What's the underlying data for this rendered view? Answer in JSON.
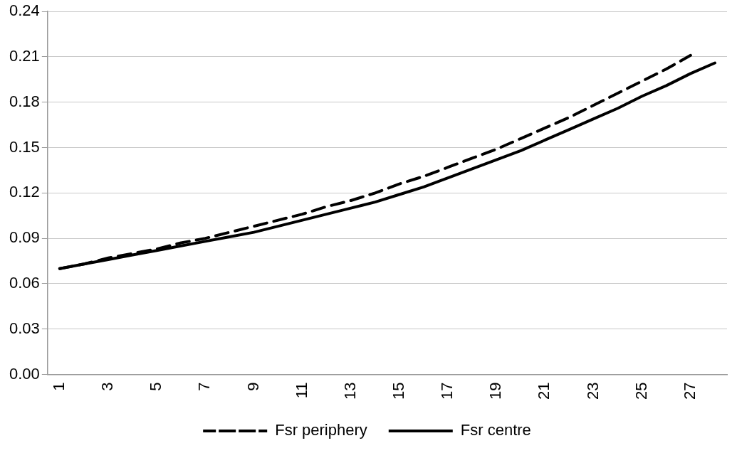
{
  "chart_data": {
    "type": "line",
    "categories": [
      "1",
      null,
      "3",
      null,
      "5",
      null,
      "7",
      null,
      "9",
      null,
      "11",
      null,
      "13",
      null,
      "15",
      null,
      "17",
      null,
      "19",
      null,
      "21",
      null,
      "23",
      null,
      "25",
      null,
      "27",
      null
    ],
    "series": [
      {
        "name": "Fsr periphery",
        "color": "#000000",
        "line_style": "dashed",
        "values": [
          0.07,
          0.073,
          0.077,
          0.08,
          0.083,
          0.087,
          0.09,
          0.094,
          0.098,
          0.102,
          0.106,
          0.111,
          0.115,
          0.12,
          0.126,
          0.131,
          0.137,
          0.143,
          0.149,
          0.156,
          0.163,
          0.17,
          0.178,
          0.186,
          0.194,
          0.202,
          0.211,
          null
        ]
      },
      {
        "name": "Fsr centre",
        "color": "#000000",
        "line_style": "solid",
        "values": [
          0.07,
          0.073,
          0.076,
          0.079,
          0.082,
          0.085,
          0.088,
          0.091,
          0.094,
          0.098,
          0.102,
          0.106,
          0.11,
          0.114,
          0.119,
          0.124,
          0.13,
          0.136,
          0.142,
          0.148,
          0.155,
          0.162,
          0.169,
          0.176,
          0.184,
          0.191,
          0.199,
          0.206
        ]
      }
    ],
    "ylim": [
      0,
      0.24
    ],
    "yticks": [
      {
        "value": 0,
        "label": "0.00"
      },
      {
        "value": 0.03,
        "label": "0.03"
      },
      {
        "value": 0.06,
        "label": "0.06"
      },
      {
        "value": 0.09,
        "label": "0.09"
      },
      {
        "value": 0.12,
        "label": "0.12"
      },
      {
        "value": 0.15,
        "label": "0.15"
      },
      {
        "value": 0.18,
        "label": "0.18"
      },
      {
        "value": 0.21,
        "label": "0.21"
      },
      {
        "value": 0.24,
        "label": "0.24"
      }
    ],
    "grid": "y",
    "legend": "bottom",
    "marker": "none"
  }
}
